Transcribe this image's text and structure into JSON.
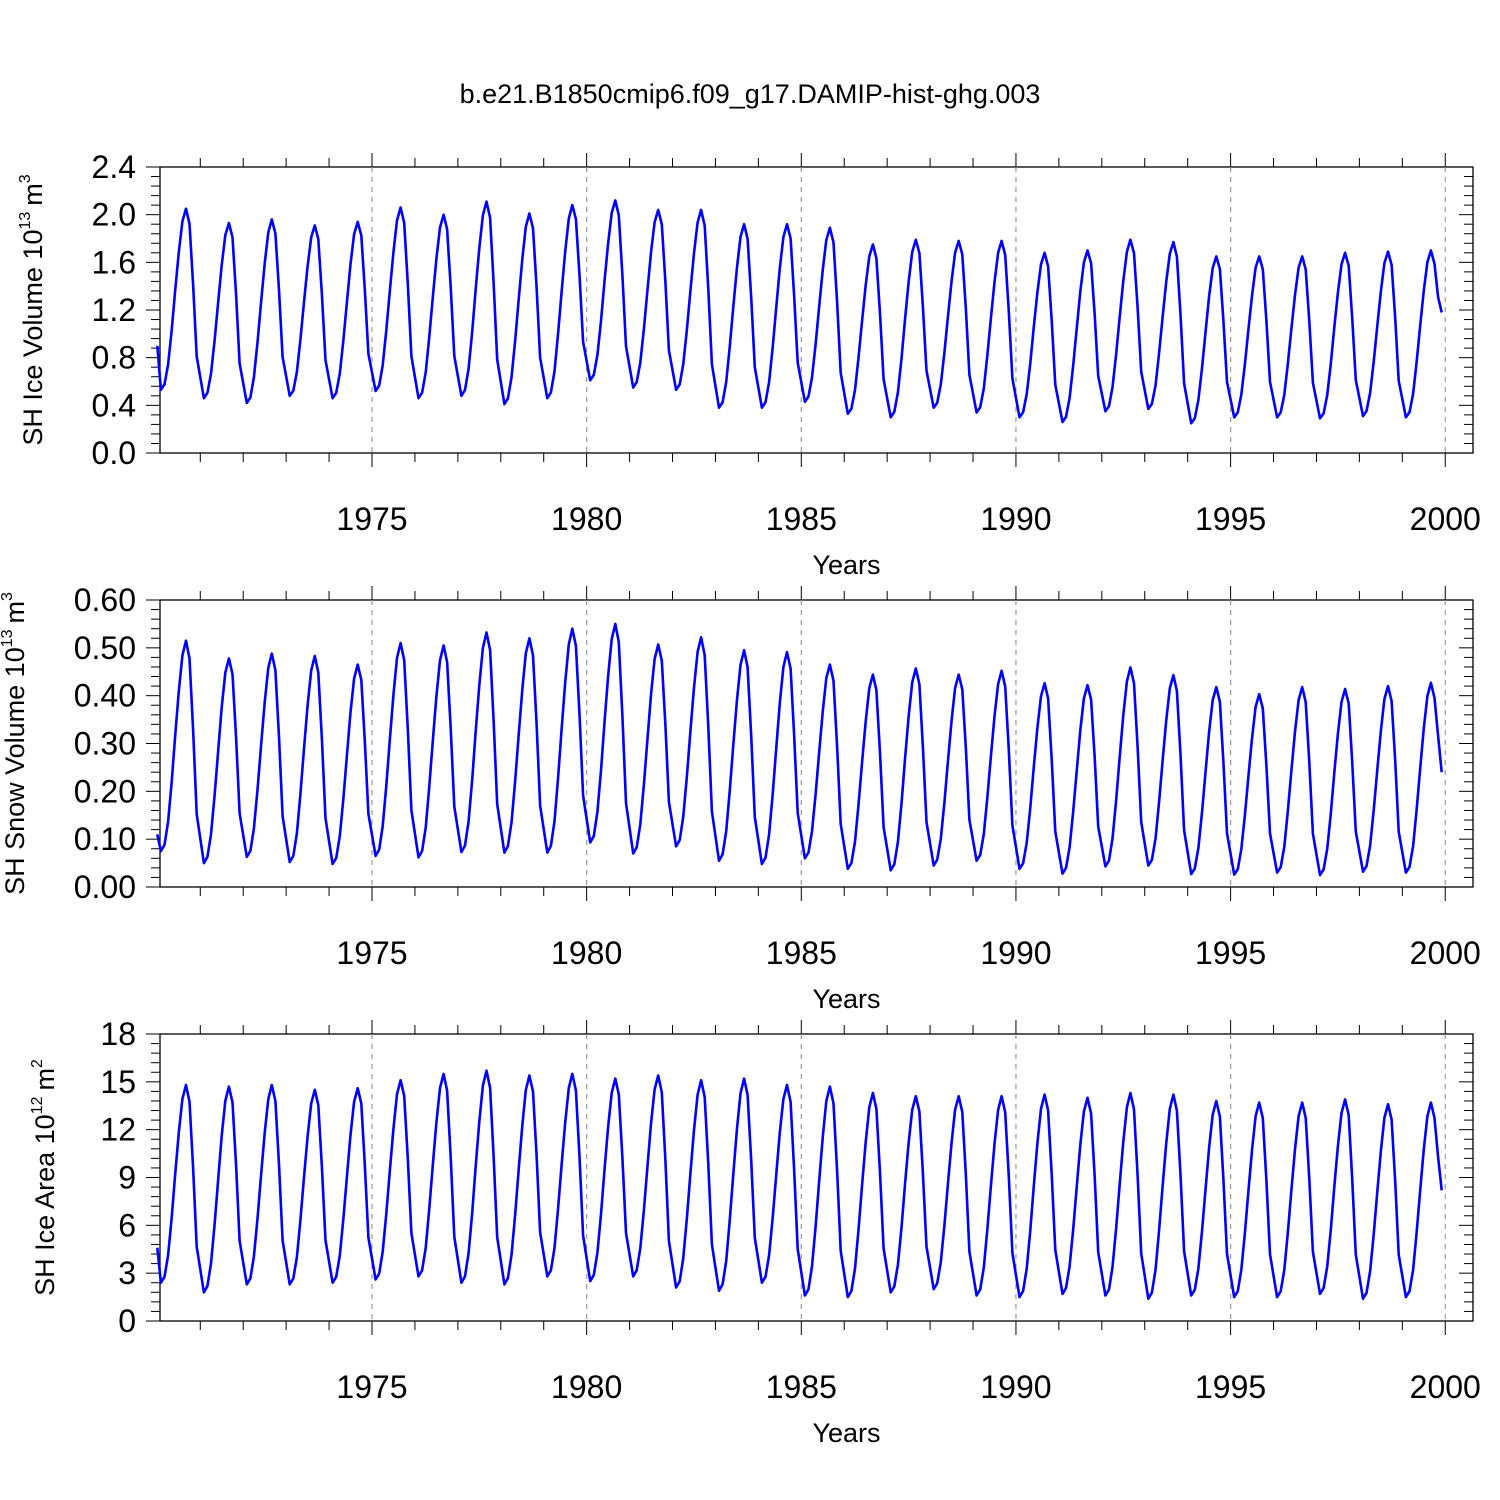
{
  "title": "b.e21.B1850cmip6.f09_g17.DAMIP-hist-ghg.003",
  "line_color": "#0000ff",
  "chart_data": [
    {
      "type": "line",
      "ylabel_main": "SH Ice Volume 10",
      "ylabel_exp": "13",
      "ylabel_unit": "m",
      "ylabel_unit_exp": "3",
      "xlabel": "Years",
      "xlim": [
        1970.0,
        2000.0
      ],
      "ylim": [
        0.0,
        2.4
      ],
      "xticks": [
        "1975",
        "1980",
        "1985",
        "1990",
        "1995",
        "2000"
      ],
      "yticks": [
        "0.0",
        "0.4",
        "0.8",
        "1.2",
        "1.6",
        "2.0",
        "2.4"
      ],
      "series": [
        {
          "name": "SH Ice Volume",
          "start_year": 1970,
          "first_value": 0.9,
          "last_value": 1.18,
          "peaks": [
            2.05,
            1.93,
            1.96,
            1.91,
            1.94,
            2.06,
            2.0,
            2.11,
            2.01,
            2.08,
            2.12,
            2.04,
            2.04,
            1.92,
            1.92,
            1.89,
            1.75,
            1.79,
            1.78,
            1.78,
            1.68,
            1.7,
            1.79,
            1.77,
            1.65,
            1.65,
            1.65,
            1.68,
            1.69,
            1.7
          ],
          "troughs": [
            0.53,
            0.46,
            0.42,
            0.48,
            0.46,
            0.52,
            0.46,
            0.48,
            0.41,
            0.46,
            0.61,
            0.55,
            0.53,
            0.38,
            0.38,
            0.43,
            0.33,
            0.3,
            0.38,
            0.34,
            0.3,
            0.26,
            0.35,
            0.37,
            0.25,
            0.3,
            0.3,
            0.29,
            0.31,
            0.3
          ]
        }
      ]
    },
    {
      "type": "line",
      "ylabel_main": "SH Snow Volume 10",
      "ylabel_exp": "13",
      "ylabel_unit": "m",
      "ylabel_unit_exp": "3",
      "xlabel": "Years",
      "xlim": [
        1970.0,
        2000.0
      ],
      "ylim": [
        0.0,
        0.6
      ],
      "xticks": [
        "1975",
        "1980",
        "1985",
        "1990",
        "1995",
        "2000"
      ],
      "yticks": [
        "0.00",
        "0.10",
        "0.20",
        "0.30",
        "0.40",
        "0.50",
        "0.60"
      ],
      "series": [
        {
          "name": "SH Snow Volume",
          "start_year": 1970,
          "first_value": 0.11,
          "last_value": 0.24,
          "peaks": [
            0.515,
            0.478,
            0.488,
            0.483,
            0.465,
            0.51,
            0.505,
            0.532,
            0.52,
            0.54,
            0.55,
            0.507,
            0.522,
            0.495,
            0.491,
            0.465,
            0.444,
            0.457,
            0.444,
            0.452,
            0.426,
            0.422,
            0.459,
            0.443,
            0.418,
            0.403,
            0.418,
            0.414,
            0.42,
            0.427
          ],
          "troughs": [
            0.075,
            0.05,
            0.063,
            0.052,
            0.048,
            0.065,
            0.062,
            0.073,
            0.072,
            0.072,
            0.093,
            0.07,
            0.085,
            0.055,
            0.048,
            0.06,
            0.038,
            0.035,
            0.045,
            0.055,
            0.038,
            0.028,
            0.043,
            0.045,
            0.027,
            0.026,
            0.03,
            0.025,
            0.032,
            0.03
          ]
        }
      ]
    },
    {
      "type": "line",
      "ylabel_main": "SH Ice Area 10",
      "ylabel_exp": "12",
      "ylabel_unit": "m",
      "ylabel_unit_exp": "2",
      "xlabel": "Years",
      "xlim": [
        1970.0,
        2000.0
      ],
      "ylim": [
        0,
        18
      ],
      "xticks": [
        "1975",
        "1980",
        "1985",
        "1990",
        "1995",
        "2000"
      ],
      "yticks": [
        "0",
        "3",
        "6",
        "9",
        "12",
        "15",
        "18"
      ],
      "series": [
        {
          "name": "SH Ice Area",
          "start_year": 1970,
          "first_value": 4.6,
          "last_value": 8.2,
          "peaks": [
            14.8,
            14.7,
            14.8,
            14.5,
            14.6,
            15.1,
            15.5,
            15.7,
            15.4,
            15.5,
            15.2,
            15.4,
            15.1,
            15.2,
            14.8,
            14.7,
            14.3,
            14.1,
            14.1,
            14.1,
            14.2,
            14.0,
            14.3,
            14.2,
            13.8,
            13.7,
            13.7,
            13.9,
            13.6,
            13.7
          ],
          "troughs": [
            2.4,
            1.8,
            2.3,
            2.3,
            2.4,
            2.6,
            2.8,
            2.4,
            2.3,
            2.8,
            2.5,
            2.8,
            2.1,
            1.9,
            2.4,
            1.6,
            1.5,
            1.8,
            2.0,
            1.6,
            1.5,
            1.7,
            1.6,
            1.4,
            1.6,
            1.5,
            1.5,
            1.7,
            1.4,
            1.5
          ]
        }
      ]
    }
  ]
}
